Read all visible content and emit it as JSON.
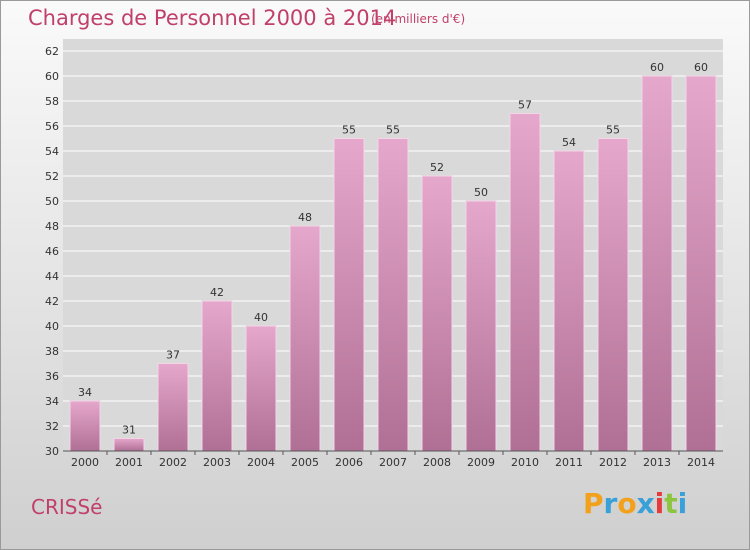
{
  "title": "Charges de Personnel 2000 à 2014",
  "unit_note": "(en milliers d'€)",
  "city": "CRISSé",
  "brand": {
    "letters": [
      "P",
      "r",
      "o",
      "x",
      "i",
      "t",
      "i"
    ],
    "colors": [
      "#f2a11d",
      "#3aa0d8",
      "#f2a11d",
      "#3aa0d8",
      "#e43c3c",
      "#8cc63f",
      "#3aa0d8"
    ]
  },
  "colors": {
    "accent": "#c0406a",
    "bar_top": "#e5a7cb",
    "bar_bottom": "#b07095",
    "grid": "#ffffff"
  },
  "chart_data": {
    "type": "bar",
    "title": "Charges de Personnel 2000 à 2014",
    "xlabel": "",
    "ylabel": "",
    "categories": [
      "2000",
      "2001",
      "2002",
      "2003",
      "2004",
      "2005",
      "2006",
      "2007",
      "2008",
      "2009",
      "2010",
      "2011",
      "2012",
      "2013",
      "2014"
    ],
    "values": [
      34,
      31,
      37,
      42,
      40,
      48,
      55,
      55,
      52,
      50,
      57,
      54,
      55,
      60,
      60
    ],
    "data_labels": [
      "34",
      "31",
      "37",
      "42",
      "40",
      "48",
      "55",
      "55",
      "52",
      "50",
      "57",
      "54",
      "55",
      "60",
      "60"
    ],
    "ylim": [
      30,
      62
    ],
    "yticks": [
      30,
      32,
      34,
      36,
      38,
      40,
      42,
      44,
      46,
      48,
      50,
      52,
      54,
      56,
      58,
      60,
      62
    ],
    "grid": true,
    "legend": "none"
  }
}
